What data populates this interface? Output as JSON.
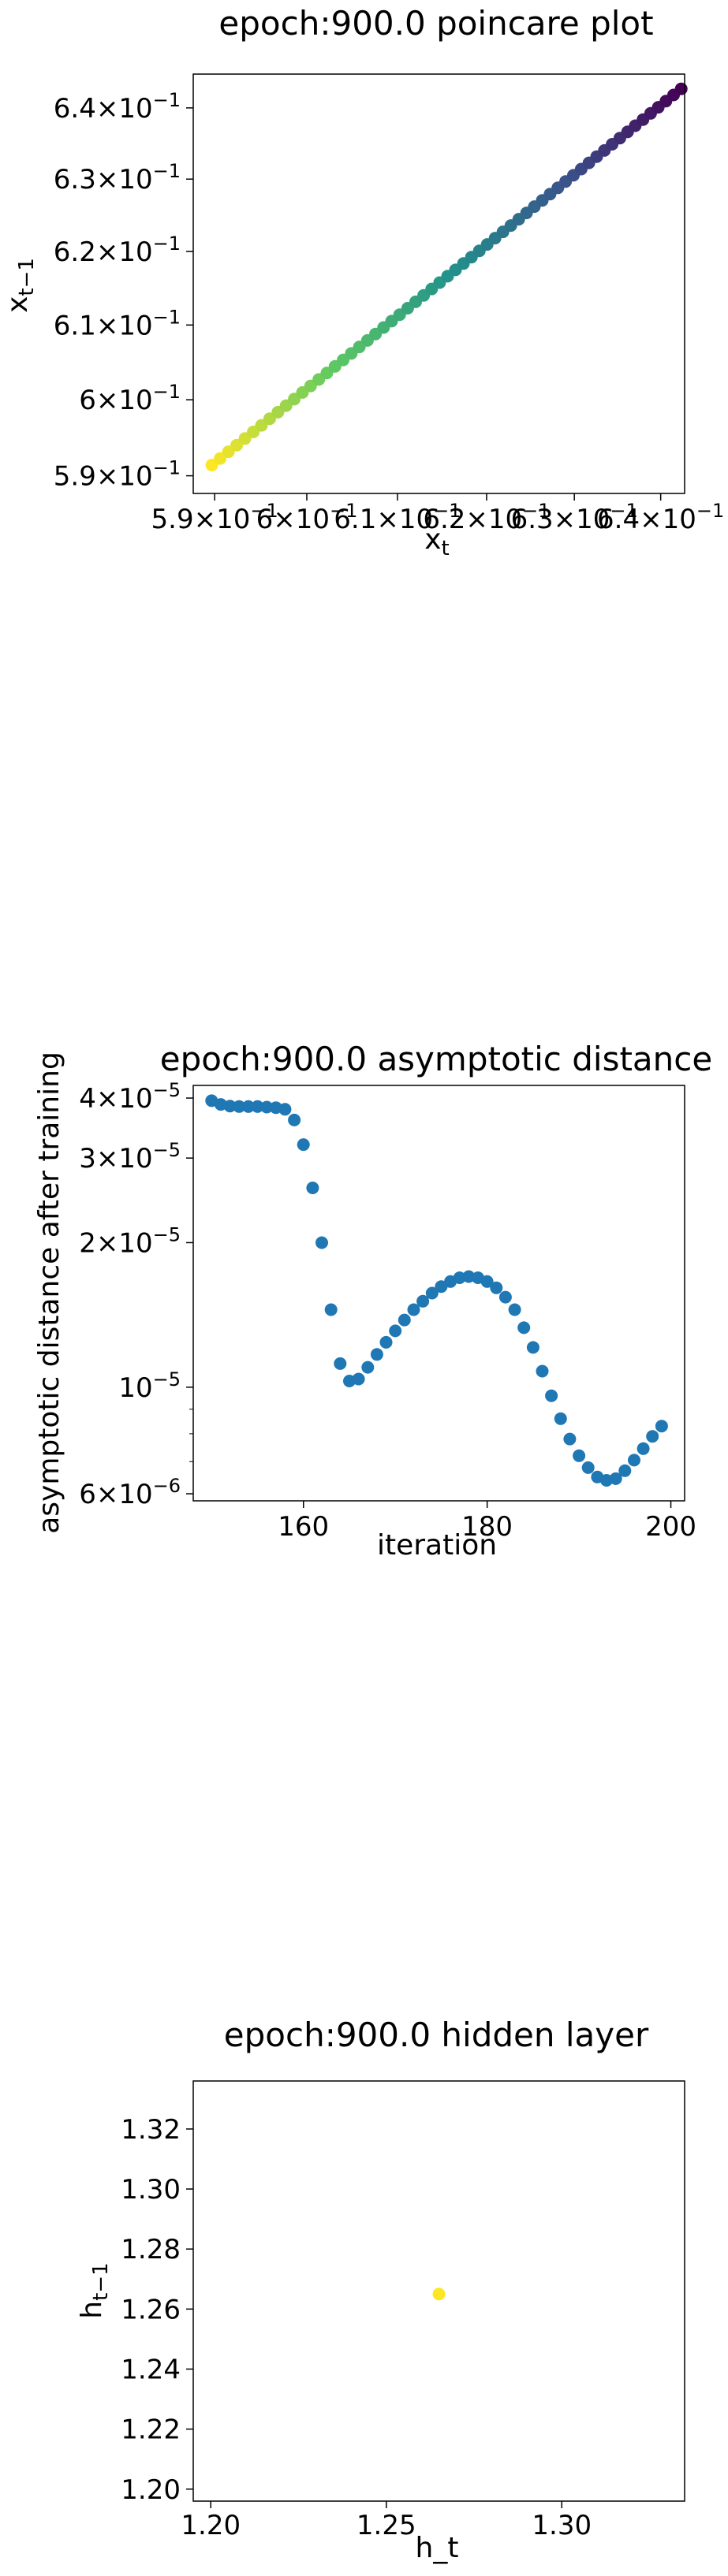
{
  "chart_data": [
    {
      "type": "scatter",
      "title": "epoch:900.0 poincare plot",
      "xlabel": "x_t",
      "ylabel": "x_{t−1}",
      "xscale": "log",
      "yscale": "log",
      "xlim": [
        0.5877,
        0.6428
      ],
      "ylim": [
        0.5877,
        0.6448
      ],
      "xtick_values": [
        0.59,
        0.6,
        0.61,
        0.62,
        0.63,
        0.64
      ],
      "xtick_labels": [
        {
          "m": "5.9",
          "e": "−1"
        },
        {
          "m": "6",
          "e": "−1"
        },
        {
          "m": "6.1",
          "e": "−1"
        },
        {
          "m": "6.2",
          "e": "−1"
        },
        {
          "m": "6.3",
          "e": "−1"
        },
        {
          "m": "6.4",
          "e": "−1"
        }
      ],
      "ytick_values": [
        0.59,
        0.6,
        0.61,
        0.62,
        0.63,
        0.64
      ],
      "ytick_labels": [
        {
          "m": "5.9",
          "e": "−1"
        },
        {
          "m": "6",
          "e": "−1"
        },
        {
          "m": "6.1",
          "e": "−1"
        },
        {
          "m": "6.2",
          "e": "−1"
        },
        {
          "m": "6.3",
          "e": "−1"
        },
        {
          "m": "6.4",
          "e": "−1"
        }
      ],
      "colormap": "viridis",
      "points_start": [
        0.5897,
        0.5914
      ],
      "points_end": [
        0.6424,
        0.6427
      ],
      "n_points": 60,
      "grid": false
    },
    {
      "type": "scatter",
      "title": "epoch:900.0 asymptotic distance",
      "xlabel": "iteration",
      "ylabel": "asymptotic distance after training",
      "yscale": "log",
      "xlim": [
        148,
        201.5
      ],
      "ylim": [
        5.8e-06,
        4.25e-05
      ],
      "xtick_values": [
        160,
        180,
        200
      ],
      "xtick_labels": [
        "160",
        "180",
        "200"
      ],
      "ytick_values": [
        6e-06,
        1e-05,
        2e-05,
        3e-05,
        4e-05
      ],
      "ytick_labels": [
        {
          "m": "6",
          "e": "−6"
        },
        {
          "m": "",
          "e": "−5"
        },
        {
          "m": "2",
          "e": "−5"
        },
        {
          "m": "3",
          "e": "−5"
        },
        {
          "m": "4",
          "e": "−5"
        }
      ],
      "color": "#1f77b4",
      "x": [
        150,
        151,
        152,
        153,
        154,
        155,
        156,
        157,
        158,
        159,
        160,
        161,
        162,
        163,
        164,
        165,
        166,
        167,
        168,
        169,
        170,
        171,
        172,
        173,
        174,
        175,
        176,
        177,
        178,
        179,
        180,
        181,
        182,
        183,
        184,
        185,
        186,
        187,
        188,
        189,
        190,
        191,
        192,
        193,
        194,
        195,
        196,
        197,
        198,
        199
      ],
      "y": [
        3.95e-05,
        3.88e-05,
        3.85e-05,
        3.84e-05,
        3.84e-05,
        3.84e-05,
        3.83e-05,
        3.82e-05,
        3.79e-05,
        3.6e-05,
        3.2e-05,
        2.6e-05,
        2e-05,
        1.45e-05,
        1.12e-05,
        1.03e-05,
        1.04e-05,
        1.1e-05,
        1.17e-05,
        1.24e-05,
        1.31e-05,
        1.38e-05,
        1.45e-05,
        1.51e-05,
        1.57e-05,
        1.62e-05,
        1.66e-05,
        1.69e-05,
        1.7e-05,
        1.69e-05,
        1.66e-05,
        1.61e-05,
        1.54e-05,
        1.45e-05,
        1.33e-05,
        1.21e-05,
        1.08e-05,
        9.6e-06,
        8.6e-06,
        7.8e-06,
        7.2e-06,
        6.8e-06,
        6.5e-06,
        6.4e-06,
        6.45e-06,
        6.7e-06,
        7.05e-06,
        7.45e-06,
        7.9e-06,
        8.3e-06
      ],
      "grid": false
    },
    {
      "type": "scatter",
      "title": "epoch:900.0 hidden layer",
      "xlabel": "h_t",
      "ylabel": "h_{t−1}",
      "xlim": [
        1.195,
        1.335
      ],
      "ylim": [
        1.196,
        1.336
      ],
      "xtick_values": [
        1.2,
        1.25,
        1.3
      ],
      "xtick_labels": [
        "1.20",
        "1.25",
        "1.30"
      ],
      "ytick_values": [
        1.2,
        1.22,
        1.24,
        1.26,
        1.28,
        1.3,
        1.32
      ],
      "ytick_labels": [
        "1.20",
        "1.22",
        "1.24",
        "1.26",
        "1.28",
        "1.30",
        "1.32"
      ],
      "color": "#fde725",
      "x": [
        1.265
      ],
      "y": [
        1.265
      ],
      "grid": false
    }
  ]
}
